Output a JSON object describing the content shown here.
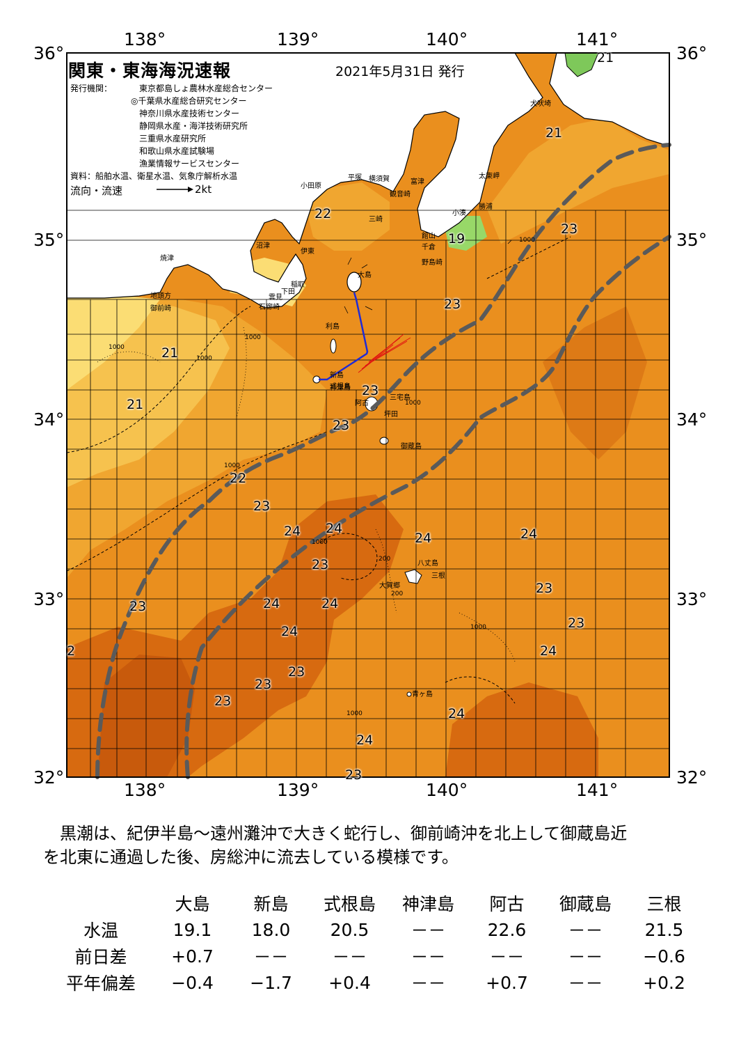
{
  "header": {
    "title": "関東・東海海況速報",
    "date": "2021年5月31日 発行",
    "agency_label": "発行機関：",
    "agencies": [
      "東京都島しょ農林水産総合センター",
      "◎千葉県水産総合研究センター",
      "神奈川県水産技術センター",
      "静岡県水産・海洋技術研究所",
      "三重県水産研究所",
      "和歌山県水産試験場",
      "漁業情報サービスセンター"
    ],
    "source": "資料：船舶水温、衛星水温、気象庁解析水温",
    "legend_label": "流向・流速",
    "legend_speed": "2kt"
  },
  "axes": {
    "lon_labels": [
      "138°",
      "139°",
      "140°",
      "141°"
    ],
    "lat_labels": [
      "36°",
      "35°",
      "34°",
      "33°",
      "32°"
    ]
  },
  "colors": {
    "water_23": "#ea8f1e",
    "water_24": "#d76a10",
    "water_24_deep": "#c85a0c",
    "water_22": "#f0a630",
    "water_21": "#f6c24e",
    "water_20": "#fbdd74",
    "water_19": "#98d868",
    "land": "#ffffff",
    "kuroshio_axis": "#5a5a5a",
    "current_vector": "#1f2bd6",
    "red_vectors": "#e01010"
  },
  "map_labels": {
    "place_names": [
      "犬吠埼",
      "太東岬",
      "勝浦",
      "小湊",
      "館山",
      "千倉",
      "野島崎",
      "富津",
      "観音崎",
      "横須賀",
      "平塚",
      "小田原",
      "三崎",
      "沼津",
      "伊東",
      "稲取",
      "下田",
      "石廊崎",
      "雲見",
      "大島",
      "焼津",
      "地頭方",
      "御前崎",
      "利島",
      "新島",
      "式根島",
      "神津島",
      "三宅島",
      "阿古",
      "坪田",
      "御蔵島",
      "八丈島",
      "三根",
      "大賀郷",
      "青ヶ島"
    ],
    "temps": [
      "21",
      "21",
      "23",
      "22",
      "19",
      "23",
      "21",
      "21",
      "23",
      "23",
      "22",
      "23",
      "24",
      "24",
      "24",
      "24",
      "23",
      "23",
      "24",
      "24",
      "24",
      "23",
      "23",
      "23",
      "24",
      "24",
      "24",
      "23",
      "23",
      "23",
      "2"
    ],
    "depth_labels": [
      "1000",
      "1000",
      "1000",
      "1000",
      "1000",
      "1000",
      "1000",
      "1000",
      "1000",
      "200",
      "200"
    ]
  },
  "description": [
    "　黒潮は、紀伊半島～遠州灘沖で大きく蛇行し、御前崎沖を北上して御蔵島近",
    "を北東に通過した後、房総沖に流去している模様です。"
  ],
  "table": {
    "columns": [
      "大島",
      "新島",
      "式根島",
      "神津島",
      "阿古",
      "御蔵島",
      "三根"
    ],
    "rows": [
      {
        "label": "水温",
        "values": [
          "19.1",
          "18.0",
          "20.5",
          "－－",
          "22.6",
          "－－",
          "21.5"
        ]
      },
      {
        "label": "前日差",
        "values": [
          "+0.7",
          "－－",
          "－－",
          "－－",
          "－－",
          "－－",
          "−0.6"
        ]
      },
      {
        "label": "平年偏差",
        "values": [
          "−0.4",
          "−1.7",
          "+0.4",
          "－－",
          "+0.7",
          "－－",
          "+0.2"
        ]
      }
    ]
  }
}
